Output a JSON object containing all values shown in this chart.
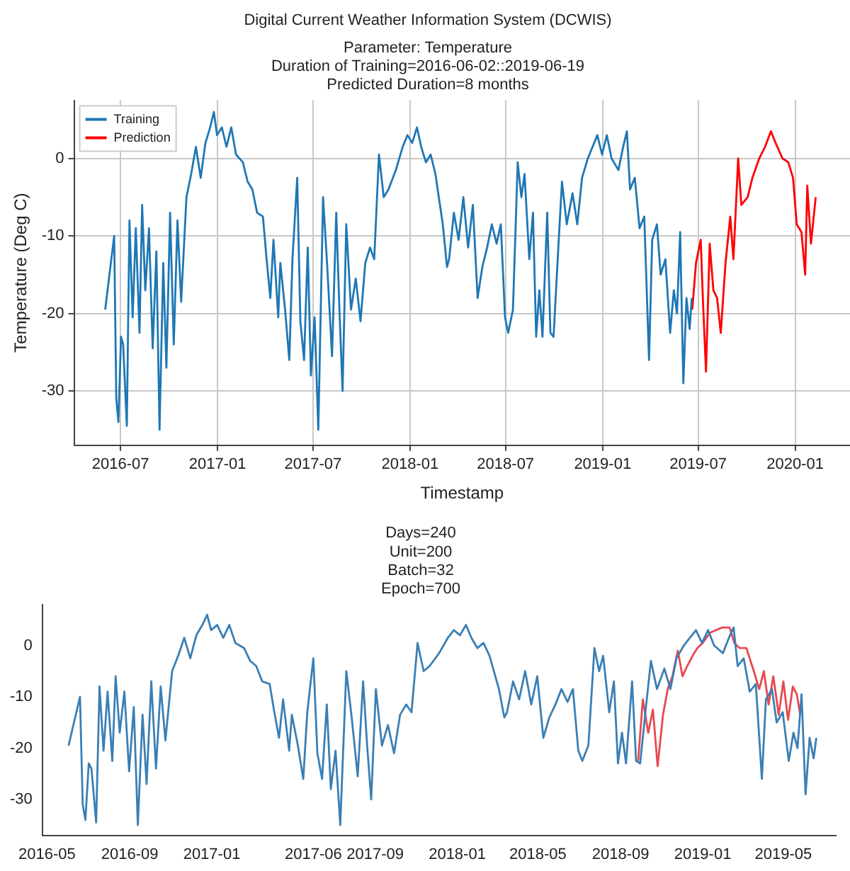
{
  "chart_data": [
    {
      "type": "line",
      "title": "Digital Current Weather Information System (DCWIS)",
      "subtitle": "Parameter: Temperature\nDuration of Training=2016-06-02::2019-06-19\nPredicted Duration=8 months",
      "xlabel": "Timestamp",
      "ylabel": "Temperature (Deg C)",
      "xlim": [
        "2016-04-04",
        "2020-04-14"
      ],
      "xticks": [
        "2016-07",
        "2017-01",
        "2017-07",
        "2018-01",
        "2018-07",
        "2019-01",
        "2019-07",
        "2020-01"
      ],
      "ylim": [
        -37,
        7.5
      ],
      "yticks": [
        -30,
        -20,
        -10,
        0
      ],
      "grid": true,
      "legend": "top left",
      "series": [
        {
          "name": "Training",
          "color": "#1f77b4",
          "x": [
            "2016-06-02",
            "2016-06-10",
            "2016-06-19",
            "2016-06-23",
            "2016-06-27",
            "2016-07-02",
            "2016-07-06",
            "2016-07-13",
            "2016-07-18",
            "2016-07-24",
            "2016-07-30",
            "2016-08-06",
            "2016-08-11",
            "2016-08-17",
            "2016-08-24",
            "2016-08-31",
            "2016-09-07",
            "2016-09-13",
            "2016-09-20",
            "2016-09-26",
            "2016-10-03",
            "2016-10-10",
            "2016-10-17",
            "2016-10-24",
            "2016-11-03",
            "2016-11-12",
            "2016-11-21",
            "2016-11-30",
            "2016-12-09",
            "2016-12-18",
            "2016-12-25",
            "2016-12-31",
            "2017-01-09",
            "2017-01-18",
            "2017-01-27",
            "2017-02-05",
            "2017-02-18",
            "2017-02-27",
            "2017-03-08",
            "2017-03-17",
            "2017-03-28",
            "2017-04-04",
            "2017-04-11",
            "2017-04-17",
            "2017-04-26",
            "2017-04-30",
            "2017-05-09",
            "2017-05-17",
            "2017-05-23",
            "2017-06-01",
            "2017-06-07",
            "2017-06-14",
            "2017-06-21",
            "2017-06-27",
            "2017-07-04",
            "2017-07-11",
            "2017-07-20",
            "2017-07-28",
            "2017-08-06",
            "2017-08-14",
            "2017-08-20",
            "2017-08-26",
            "2017-09-02",
            "2017-09-11",
            "2017-09-20",
            "2017-09-29",
            "2017-10-08",
            "2017-10-17",
            "2017-10-25",
            "2017-11-03",
            "2017-11-12",
            "2017-11-21",
            "2017-12-05",
            "2017-12-18",
            "2017-12-27",
            "2018-01-05",
            "2018-01-14",
            "2018-01-22",
            "2018-01-31",
            "2018-02-09",
            "2018-02-18",
            "2018-03-04",
            "2018-03-12",
            "2018-03-16",
            "2018-03-25",
            "2018-04-03",
            "2018-04-12",
            "2018-04-21",
            "2018-04-30",
            "2018-05-09",
            "2018-05-18",
            "2018-05-27",
            "2018-06-05",
            "2018-06-14",
            "2018-06-22",
            "2018-06-30",
            "2018-07-06",
            "2018-07-15",
            "2018-07-24",
            "2018-07-31",
            "2018-08-06",
            "2018-08-15",
            "2018-08-22",
            "2018-08-28",
            "2018-09-03",
            "2018-09-09",
            "2018-09-18",
            "2018-09-24",
            "2018-09-30",
            "2018-10-09",
            "2018-10-16",
            "2018-10-25",
            "2018-11-05",
            "2018-11-14",
            "2018-11-23",
            "2018-12-04",
            "2018-12-13",
            "2018-12-22",
            "2018-12-31",
            "2019-01-09",
            "2019-01-18",
            "2019-01-31",
            "2019-02-09",
            "2019-02-16",
            "2019-02-22",
            "2019-03-03",
            "2019-03-12",
            "2019-03-21",
            "2019-03-30",
            "2019-04-05",
            "2019-04-14",
            "2019-04-21",
            "2019-04-30",
            "2019-05-09",
            "2019-05-16",
            "2019-05-22",
            "2019-05-28",
            "2019-06-03",
            "2019-06-09",
            "2019-06-15",
            "2019-06-19"
          ],
          "values": [
            -19.5,
            -15,
            -10,
            -31,
            -34,
            -23,
            -24,
            -34.5,
            -8,
            -20.5,
            -9,
            -22.5,
            -6,
            -17,
            -9,
            -24.5,
            -12,
            -35,
            -13.5,
            -27,
            -7,
            -24,
            -8,
            -18.5,
            -5,
            -2,
            1.5,
            -2.5,
            2,
            4,
            6,
            3,
            4,
            1.5,
            4,
            0.5,
            -0.5,
            -3,
            -4,
            -7,
            -7.5,
            -13,
            -18,
            -10.5,
            -20.5,
            -13.5,
            -19.5,
            -26,
            -13,
            -2.5,
            -21,
            -26,
            -11.5,
            -28,
            -20.5,
            -35,
            -5,
            -14,
            -25.5,
            -7,
            -19.5,
            -30,
            -8.5,
            -19.5,
            -15.5,
            -21,
            -13.5,
            -11.5,
            -13,
            0.5,
            -5,
            -4,
            -1.5,
            1.5,
            3,
            2,
            4,
            1.5,
            -0.5,
            0.5,
            -2,
            -8.5,
            -14,
            -13,
            -7,
            -10.5,
            -5,
            -11.5,
            -6,
            -18,
            -14,
            -11.5,
            -8.5,
            -11,
            -8.5,
            -20.5,
            -22.5,
            -19.5,
            -0.5,
            -5,
            -2,
            -13,
            -7,
            -23,
            -17,
            -23,
            -7,
            -22.5,
            -23,
            -11.5,
            -3,
            -8.5,
            -4.5,
            -8.5,
            -2.5,
            0,
            1.5,
            3,
            0.5,
            3,
            0,
            -1.5,
            1.5,
            3.5,
            -4,
            -2.5,
            -9,
            -7.5,
            -26,
            -10.5,
            -8.5,
            -15,
            -13,
            -22.5,
            -17,
            -20,
            -9.5,
            -29,
            -18,
            -22,
            -18
          ]
        },
        {
          "name": "Prediction",
          "color": "#ff0000",
          "x": [
            "2019-06-20",
            "2019-06-27",
            "2019-07-06",
            "2019-07-10",
            "2019-07-16",
            "2019-07-23",
            "2019-07-30",
            "2019-08-06",
            "2019-08-13",
            "2019-08-22",
            "2019-08-31",
            "2019-09-06",
            "2019-09-15",
            "2019-09-21",
            "2019-10-03",
            "2019-10-12",
            "2019-10-25",
            "2019-11-05",
            "2019-11-16",
            "2019-11-25",
            "2019-12-08",
            "2019-12-19",
            "2019-12-28",
            "2020-01-04",
            "2020-01-13",
            "2020-01-20",
            "2020-01-24",
            "2020-01-31",
            "2020-02-09"
          ],
          "values": [
            -19.5,
            -13.5,
            -10.5,
            -18,
            -27.5,
            -11,
            -17,
            -18,
            -22.5,
            -13.5,
            -7.5,
            -13,
            0,
            -6,
            -5,
            -2.5,
            0,
            1.5,
            3.5,
            2,
            0,
            -0.5,
            -2.5,
            -8.5,
            -9.5,
            -15,
            -3.5,
            -11,
            -5
          ]
        }
      ]
    },
    {
      "type": "line",
      "title": "Days=240\nUnit=200\nBatch=32\nEpoch=700",
      "xlim": [
        "2016-04-24",
        "2019-07-18"
      ],
      "xticks": [
        "2016-05",
        "2016-09",
        "2017-01",
        "2017-06",
        "2017-09",
        "2018-01",
        "2018-05",
        "2018-09",
        "2019-01",
        "2019-05"
      ],
      "ylim": [
        -37,
        8
      ],
      "yticks": [
        -30,
        -20,
        -10,
        0
      ],
      "series": [
        {
          "color": "#3a7fb5",
          "x": [
            "2016-06-02",
            "2016-06-10",
            "2016-06-19",
            "2016-06-23",
            "2016-06-27",
            "2016-07-02",
            "2016-07-06",
            "2016-07-13",
            "2016-07-18",
            "2016-07-24",
            "2016-07-30",
            "2016-08-06",
            "2016-08-11",
            "2016-08-17",
            "2016-08-24",
            "2016-08-31",
            "2016-09-07",
            "2016-09-13",
            "2016-09-20",
            "2016-09-26",
            "2016-10-03",
            "2016-10-10",
            "2016-10-17",
            "2016-10-24",
            "2016-11-03",
            "2016-11-12",
            "2016-11-21",
            "2016-11-30",
            "2016-12-09",
            "2016-12-18",
            "2016-12-25",
            "2016-12-31",
            "2017-01-09",
            "2017-01-18",
            "2017-01-27",
            "2017-02-05",
            "2017-02-18",
            "2017-02-27",
            "2017-03-08",
            "2017-03-17",
            "2017-03-28",
            "2017-04-04",
            "2017-04-11",
            "2017-04-17",
            "2017-04-26",
            "2017-04-30",
            "2017-05-09",
            "2017-05-17",
            "2017-05-23",
            "2017-06-01",
            "2017-06-07",
            "2017-06-14",
            "2017-06-21",
            "2017-06-27",
            "2017-07-04",
            "2017-07-11",
            "2017-07-20",
            "2017-07-28",
            "2017-08-06",
            "2017-08-14",
            "2017-08-20",
            "2017-08-26",
            "2017-09-02",
            "2017-09-11",
            "2017-09-20",
            "2017-09-29",
            "2017-10-08",
            "2017-10-17",
            "2017-10-25",
            "2017-11-03",
            "2017-11-12",
            "2017-11-21",
            "2017-12-05",
            "2017-12-18",
            "2017-12-27",
            "2018-01-05",
            "2018-01-14",
            "2018-01-22",
            "2018-01-31",
            "2018-02-09",
            "2018-02-18",
            "2018-03-04",
            "2018-03-12",
            "2018-03-16",
            "2018-03-25",
            "2018-04-03",
            "2018-04-12",
            "2018-04-21",
            "2018-04-30",
            "2018-05-09",
            "2018-05-18",
            "2018-05-27",
            "2018-06-05",
            "2018-06-14",
            "2018-06-22",
            "2018-06-30",
            "2018-07-06",
            "2018-07-15",
            "2018-07-24",
            "2018-07-31",
            "2018-08-06",
            "2018-08-15",
            "2018-08-22",
            "2018-08-28",
            "2018-09-03",
            "2018-09-09",
            "2018-09-18",
            "2018-09-24",
            "2018-09-30",
            "2018-10-09",
            "2018-10-16",
            "2018-10-25",
            "2018-11-05",
            "2018-11-14",
            "2018-11-23",
            "2018-12-04",
            "2018-12-13",
            "2018-12-22",
            "2018-12-31",
            "2019-01-09",
            "2019-01-18",
            "2019-01-31",
            "2019-02-09",
            "2019-02-16",
            "2019-02-22",
            "2019-03-03",
            "2019-03-12",
            "2019-03-21",
            "2019-03-30",
            "2019-04-05",
            "2019-04-14",
            "2019-04-21",
            "2019-04-30",
            "2019-05-09",
            "2019-05-16",
            "2019-05-22",
            "2019-05-28",
            "2019-06-03",
            "2019-06-09",
            "2019-06-15",
            "2019-06-19"
          ],
          "values": [
            -19.5,
            -15,
            -10,
            -31,
            -34,
            -23,
            -24,
            -34.5,
            -8,
            -20.5,
            -9,
            -22.5,
            -6,
            -17,
            -9,
            -24.5,
            -12,
            -35,
            -13.5,
            -27,
            -7,
            -24,
            -8,
            -18.5,
            -5,
            -2,
            1.5,
            -2.5,
            2,
            4,
            6,
            3,
            4,
            1.5,
            4,
            0.5,
            -0.5,
            -3,
            -4,
            -7,
            -7.5,
            -13,
            -18,
            -10.5,
            -20.5,
            -13.5,
            -19.5,
            -26,
            -13,
            -2.5,
            -21,
            -26,
            -11.5,
            -28,
            -20.5,
            -35,
            -5,
            -14,
            -25.5,
            -7,
            -19.5,
            -30,
            -8.5,
            -19.5,
            -15.5,
            -21,
            -13.5,
            -11.5,
            -13,
            0.5,
            -5,
            -4,
            -1.5,
            1.5,
            3,
            2,
            4,
            1.5,
            -0.5,
            0.5,
            -2,
            -8.5,
            -14,
            -13,
            -7,
            -10.5,
            -5,
            -11.5,
            -6,
            -18,
            -14,
            -11.5,
            -8.5,
            -11,
            -8.5,
            -20.5,
            -22.5,
            -19.5,
            -0.5,
            -5,
            -2,
            -13,
            -7,
            -23,
            -17,
            -23,
            -7,
            -22.5,
            -23,
            -11.5,
            -3,
            -8.5,
            -4.5,
            -8.5,
            -2.5,
            0,
            1.5,
            3,
            0.5,
            3,
            0,
            -1.5,
            1.5,
            3.5,
            -4,
            -2.5,
            -9,
            -7.5,
            -26,
            -10.5,
            -8.5,
            -15,
            -13,
            -22.5,
            -17,
            -20,
            -9.5,
            -29,
            -18,
            -22,
            -18
          ]
        },
        {
          "color": "#e8484f",
          "x": [
            "2018-09-27",
            "2018-10-04",
            "2018-10-12",
            "2018-10-19",
            "2018-10-26",
            "2018-11-03",
            "2018-11-10",
            "2018-11-17",
            "2018-11-25",
            "2018-12-02",
            "2018-12-09",
            "2018-12-17",
            "2018-12-24",
            "2019-01-01",
            "2019-01-12",
            "2019-01-21",
            "2019-01-30",
            "2019-02-10",
            "2019-02-17",
            "2019-02-25",
            "2019-03-07",
            "2019-03-18",
            "2019-03-26",
            "2019-04-02",
            "2019-04-09",
            "2019-04-16",
            "2019-04-24",
            "2019-05-01",
            "2019-05-08",
            "2019-05-15",
            "2019-05-21",
            "2019-05-26"
          ],
          "values": [
            -22.5,
            -10.5,
            -17,
            -12.5,
            -23.5,
            -13.5,
            -8.5,
            -6,
            -1,
            -6,
            -4,
            -2,
            -0.5,
            0.5,
            2.5,
            3,
            3.5,
            3.5,
            0.5,
            -0.5,
            -0.5,
            -5,
            -8.5,
            -5,
            -11.5,
            -6,
            -13.5,
            -7,
            -14.5,
            -8,
            -9.5,
            -13.5
          ]
        }
      ]
    }
  ]
}
